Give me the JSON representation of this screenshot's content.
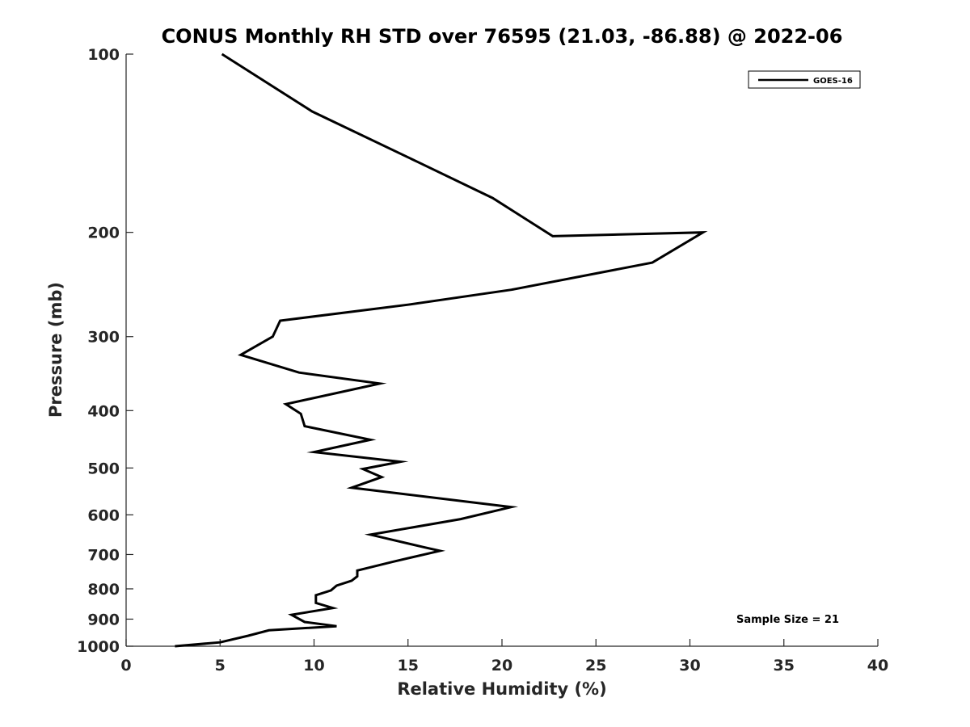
{
  "chart_data": {
    "type": "line",
    "title": "CONUS Monthly RH STD over 76595 (21.03, -86.88) @ 2022-06",
    "xlabel": "Relative Humidity (%)",
    "ylabel": "Pressure (mb)",
    "xlim": [
      0,
      40
    ],
    "ylim": [
      100,
      1000
    ],
    "yscale": "log",
    "y_reversed": true,
    "xticks": [
      0,
      5,
      10,
      15,
      20,
      25,
      30,
      35,
      40
    ],
    "yticks": [
      100,
      200,
      300,
      400,
      500,
      600,
      700,
      800,
      900,
      1000
    ],
    "grid": false,
    "legend_position": "top-right",
    "annotation": "Sample Size = 21",
    "series": [
      {
        "name": "GOES-16",
        "color": "#000000",
        "points": [
          [
            5.1,
            100
          ],
          [
            9.9,
            125
          ],
          [
            15.5,
            152
          ],
          [
            19.5,
            175
          ],
          [
            22.7,
            203
          ],
          [
            30.7,
            200
          ],
          [
            28.0,
            225
          ],
          [
            20.5,
            250
          ],
          [
            15.0,
            265
          ],
          [
            8.2,
            282
          ],
          [
            7.8,
            300
          ],
          [
            6.1,
            322
          ],
          [
            9.2,
            345
          ],
          [
            13.5,
            360
          ],
          [
            8.5,
            390
          ],
          [
            9.3,
            405
          ],
          [
            9.5,
            425
          ],
          [
            13.0,
            448
          ],
          [
            10.0,
            470
          ],
          [
            14.6,
            488
          ],
          [
            12.6,
            502
          ],
          [
            13.6,
            518
          ],
          [
            12.0,
            540
          ],
          [
            20.5,
            582
          ],
          [
            17.8,
            610
          ],
          [
            13.0,
            648
          ],
          [
            15.8,
            680
          ],
          [
            16.7,
            690
          ],
          [
            14.2,
            720
          ],
          [
            12.3,
            745
          ],
          [
            12.3,
            762
          ],
          [
            12.0,
            775
          ],
          [
            11.2,
            790
          ],
          [
            10.9,
            805
          ],
          [
            10.1,
            820
          ],
          [
            10.1,
            845
          ],
          [
            11.0,
            862
          ],
          [
            8.8,
            885
          ],
          [
            9.5,
            910
          ],
          [
            11.2,
            925
          ],
          [
            7.6,
            940
          ],
          [
            6.5,
            960
          ],
          [
            5.0,
            985
          ],
          [
            2.6,
            1000
          ]
        ]
      }
    ]
  }
}
